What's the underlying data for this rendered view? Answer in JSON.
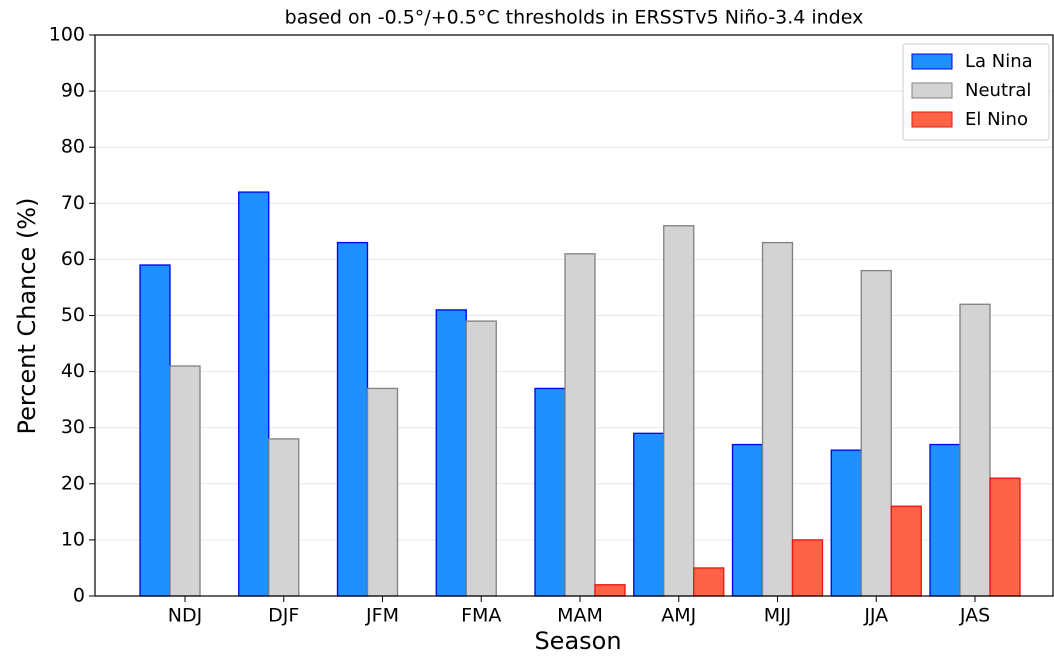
{
  "chart_data": {
    "type": "bar",
    "title": "based on -0.5°/+0.5°C thresholds in ERSSTv5 Niño-3.4 index",
    "x_label": "Season",
    "y_label": "Percent Chance (%)",
    "categories": [
      "NDJ",
      "DJF",
      "JFM",
      "FMA",
      "MAM",
      "AMJ",
      "MJJ",
      "JJA",
      "JAS"
    ],
    "series": [
      {
        "name": "La Nina",
        "color": "#1e90ff",
        "edge": "#0000ee",
        "values": [
          59,
          72,
          63,
          51,
          37,
          29,
          27,
          26,
          27
        ]
      },
      {
        "name": "Neutral",
        "color": "#d3d3d3",
        "edge": "#808080",
        "values": [
          41,
          28,
          37,
          49,
          61,
          66,
          63,
          58,
          52
        ]
      },
      {
        "name": "El Nino",
        "color": "#ff6347",
        "edge": "#ee1111",
        "values": [
          0,
          0,
          0,
          0,
          2,
          5,
          10,
          16,
          21
        ]
      }
    ],
    "ylim": [
      0,
      100
    ],
    "yticks": [
      0,
      10,
      20,
      30,
      40,
      50,
      60,
      70,
      80,
      90,
      100
    ],
    "grid": true,
    "legend": "upper right"
  }
}
